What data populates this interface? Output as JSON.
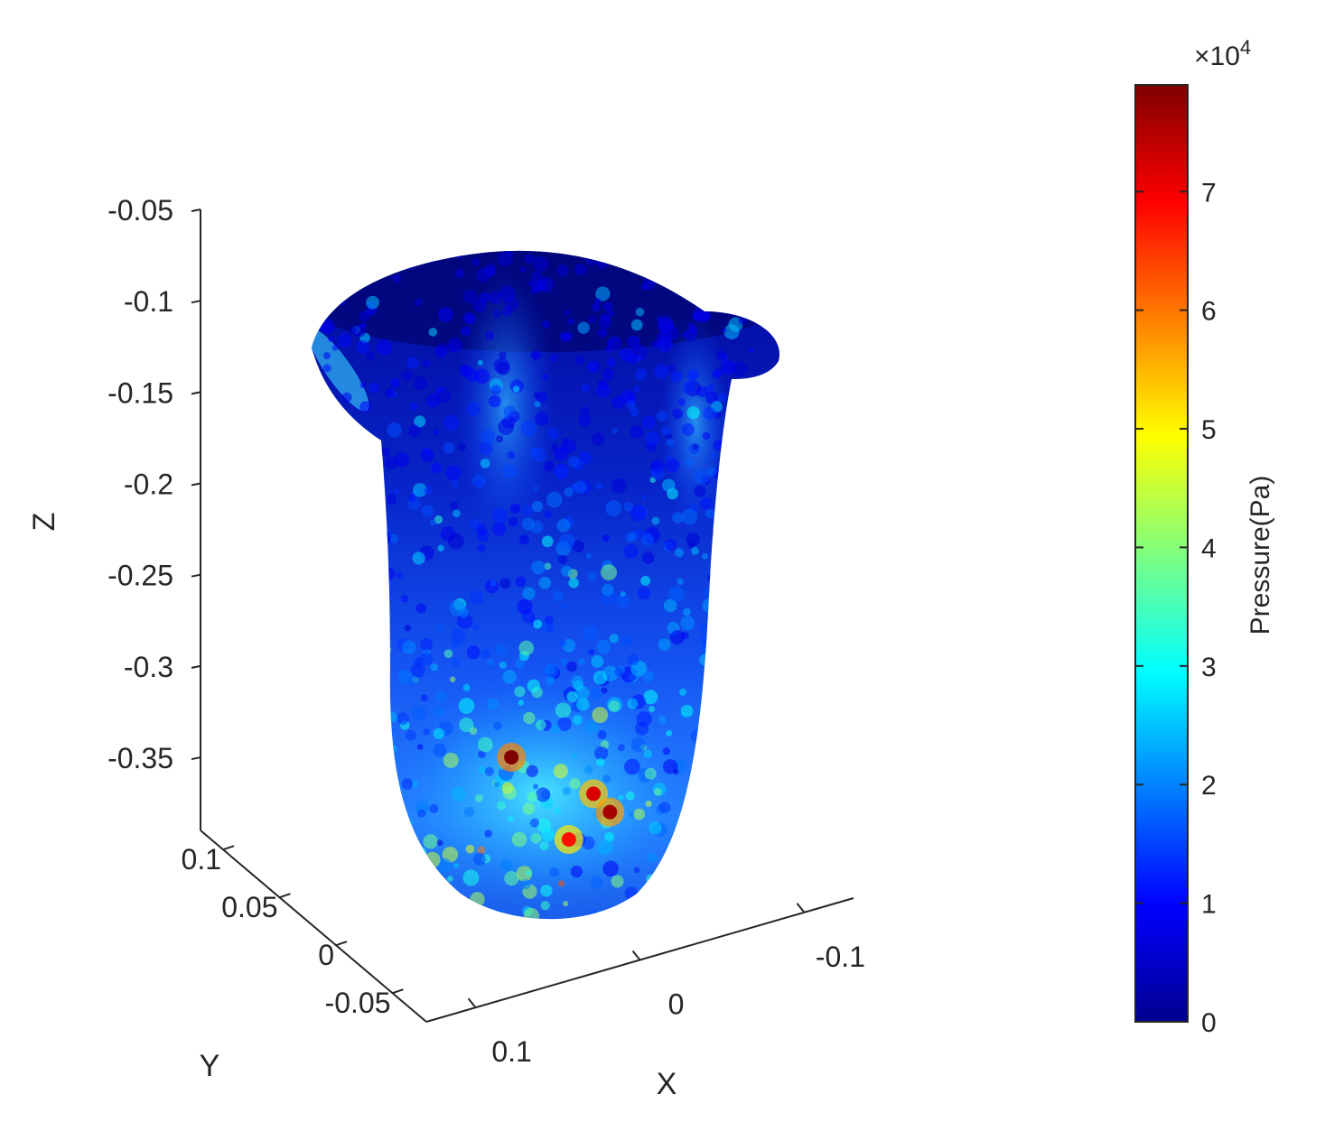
{
  "chart_data": {
    "type": "surface3d",
    "title": "",
    "axes": {
      "z": {
        "label": "Z",
        "range": [
          -0.39,
          -0.05
        ],
        "ticks": [
          -0.05,
          -0.1,
          -0.15,
          -0.2,
          -0.25,
          -0.3,
          -0.35
        ],
        "tick_labels": [
          "-0.05",
          "-0.1",
          "-0.15",
          "-0.2",
          "-0.25",
          "-0.3",
          "-0.35"
        ]
      },
      "y": {
        "label": "Y",
        "range": [
          -0.08,
          0.12
        ],
        "ticks": [
          0.1,
          0.05,
          0,
          -0.05
        ],
        "tick_labels": [
          "0.1",
          "0.05",
          "0",
          "-0.05"
        ]
      },
      "x": {
        "label": "X",
        "range": [
          0.13,
          -0.13
        ],
        "ticks": [
          0.1,
          0,
          -0.1
        ],
        "tick_labels": [
          "0.1",
          "0",
          "-0.1"
        ]
      }
    },
    "colorbar": {
      "label": "Pressure(Pa)",
      "multiplier": "×10",
      "exponent": "4",
      "range": [
        0,
        7.9
      ],
      "ticks": [
        0,
        1,
        2,
        3,
        4,
        5,
        6,
        7
      ],
      "tick_labels": [
        "0",
        "1",
        "2",
        "3",
        "4",
        "5",
        "6",
        "7"
      ],
      "colormap": "jet"
    },
    "colors": {
      "low": "#00008f",
      "mid_low": "#0050ff",
      "mid": "#00ffff",
      "mid_high": "#ffff00",
      "high": "#ff0000",
      "max": "#800000"
    },
    "peaks": [
      {
        "x": 0.07,
        "z": -0.345,
        "value": 7.9
      },
      {
        "x": 0.02,
        "z": -0.365,
        "value": 7.2
      },
      {
        "x": 0.01,
        "z": -0.375,
        "value": 7.6
      },
      {
        "x": 0.035,
        "z": -0.39,
        "value": 6.8
      }
    ]
  }
}
